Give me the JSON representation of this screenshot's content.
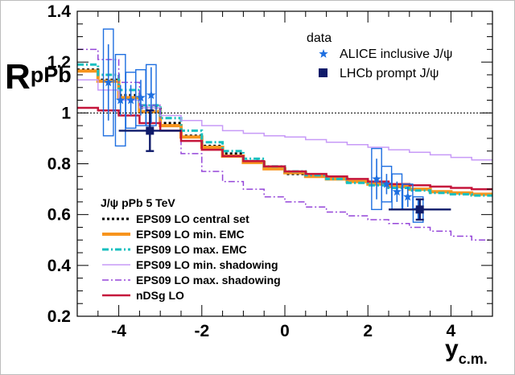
{
  "chart_data": {
    "type": "step",
    "xlabel": "y",
    "xlabel_sub": "c.m.",
    "ylabel": "R",
    "ylabel_sub": "pPb",
    "xlim": [
      -5,
      5
    ],
    "ylim": [
      0.2,
      1.4
    ],
    "xticks": [
      "-4",
      "-2",
      "0",
      "2",
      "4"
    ],
    "yticks": [
      "0.2",
      "0.4",
      "0.6",
      "0.8",
      "1",
      "1.2",
      "1.4"
    ],
    "reference_line": 1.0,
    "data_legend_title": "data",
    "data_series": [
      {
        "name": "ALICE inclusive J/ψ",
        "color": "#1e6fe0",
        "marker": "star",
        "x": [
          -4.25,
          -3.96,
          -3.71,
          -3.47,
          -3.22,
          2.21,
          2.45,
          2.7,
          2.96,
          3.21
        ],
        "y": [
          1.12,
          1.05,
          1.05,
          1.06,
          1.07,
          0.74,
          0.72,
          0.69,
          0.67,
          0.62
        ],
        "xerr": 0.12,
        "stat_err": [
          0.15,
          0.06,
          0.06,
          0.07,
          0.11,
          0.08,
          0.04,
          0.04,
          0.04,
          0.04
        ],
        "sys_err": [
          0.21,
          0.18,
          0.11,
          0.11,
          0.12,
          0.12,
          0.07,
          0.07,
          0.05,
          0.05
        ]
      },
      {
        "name": "LHCb prompt J/ψ",
        "color": "#0f1b6a",
        "marker": "square",
        "x": [
          -3.25,
          3.25
        ],
        "y": [
          0.93,
          0.62
        ],
        "xerr": 0.75,
        "stat_err": [
          0.08,
          0.04
        ],
        "sys_err": [
          0.02,
          0.02
        ]
      }
    ],
    "model_legend_title": "J/ψ pPb 5 TeV",
    "model_edges": [
      -5,
      -4.5,
      -4,
      -3.5,
      -3,
      -2.5,
      -2,
      -1.5,
      -1,
      -0.5,
      0,
      0.5,
      1,
      1.5,
      2,
      2.5,
      3,
      3.5,
      4,
      4.5,
      5
    ],
    "model_series": [
      {
        "name": "EPS09 LO central set",
        "color": "#000000",
        "style": "dotted",
        "width": 3,
        "values": [
          1.17,
          1.13,
          1.07,
          1.02,
          0.96,
          0.91,
          0.87,
          0.84,
          0.81,
          0.78,
          0.76,
          0.75,
          0.74,
          0.73,
          0.72,
          0.71,
          0.7,
          0.69,
          0.685,
          0.68
        ]
      },
      {
        "name": "EPS09 LO min. EMC",
        "color": "#f7941d",
        "style": "solid",
        "width": 4,
        "values": [
          1.165,
          1.125,
          1.06,
          1.005,
          0.95,
          0.905,
          0.865,
          0.83,
          0.805,
          0.78,
          0.765,
          0.75,
          0.74,
          0.73,
          0.72,
          0.71,
          0.7,
          0.69,
          0.685,
          0.68
        ]
      },
      {
        "name": "EPS09 LO max. EMC",
        "color": "#17bfbf",
        "style": "dashdot",
        "width": 3,
        "values": [
          1.19,
          1.15,
          1.09,
          1.03,
          0.98,
          0.93,
          0.885,
          0.85,
          0.82,
          0.79,
          0.77,
          0.755,
          0.74,
          0.725,
          0.715,
          0.705,
          0.695,
          0.685,
          0.68,
          0.675
        ]
      },
      {
        "name": "EPS09 LO min. shadowing",
        "color": "#c79af7",
        "style": "solid",
        "width": 1.5,
        "values": [
          1.13,
          1.09,
          1.05,
          1.02,
          0.99,
          0.97,
          0.95,
          0.93,
          0.92,
          0.91,
          0.905,
          0.895,
          0.885,
          0.875,
          0.865,
          0.855,
          0.845,
          0.835,
          0.825,
          0.815
        ]
      },
      {
        "name": "EPS09 LO max. shadowing",
        "color": "#9546d9",
        "style": "dashdot",
        "width": 1.5,
        "values": [
          1.25,
          1.21,
          1.12,
          1.03,
          0.93,
          0.84,
          0.77,
          0.73,
          0.7,
          0.67,
          0.65,
          0.63,
          0.61,
          0.595,
          0.58,
          0.565,
          0.55,
          0.535,
          0.515,
          0.5
        ]
      },
      {
        "name": "nDSg LO",
        "color": "#c5153b",
        "style": "solid",
        "width": 2.5,
        "values": [
          1.02,
          1.01,
          0.99,
          0.96,
          0.93,
          0.89,
          0.855,
          0.83,
          0.81,
          0.79,
          0.77,
          0.76,
          0.75,
          0.74,
          0.73,
          0.72,
          0.715,
          0.71,
          0.705,
          0.7
        ]
      }
    ]
  }
}
